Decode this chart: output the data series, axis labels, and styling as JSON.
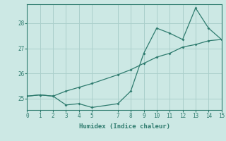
{
  "xlabel": "Humidex (Indice chaleur)",
  "background_color": "#cce8e4",
  "grid_color": "#aacfcb",
  "line_color": "#2e7b6e",
  "xlim": [
    0,
    15
  ],
  "ylim": [
    24.55,
    28.75
  ],
  "yticks": [
    25,
    26,
    27,
    28
  ],
  "xticks": [
    0,
    1,
    2,
    3,
    4,
    5,
    7,
    8,
    9,
    10,
    11,
    12,
    13,
    14,
    15
  ],
  "series1_x": [
    0,
    1,
    2,
    3,
    4,
    5,
    7,
    8,
    9,
    10,
    11,
    12,
    13,
    14,
    15
  ],
  "series1_y": [
    25.1,
    25.15,
    25.1,
    24.75,
    24.8,
    24.65,
    24.8,
    25.3,
    26.8,
    27.8,
    27.6,
    27.35,
    28.6,
    27.8,
    27.35
  ],
  "series2_x": [
    0,
    1,
    2,
    3,
    4,
    5,
    7,
    8,
    9,
    10,
    11,
    12,
    13,
    14,
    15
  ],
  "series2_y": [
    25.1,
    25.15,
    25.1,
    25.3,
    25.45,
    25.6,
    25.95,
    26.15,
    26.4,
    26.65,
    26.8,
    27.05,
    27.15,
    27.3,
    27.35
  ]
}
